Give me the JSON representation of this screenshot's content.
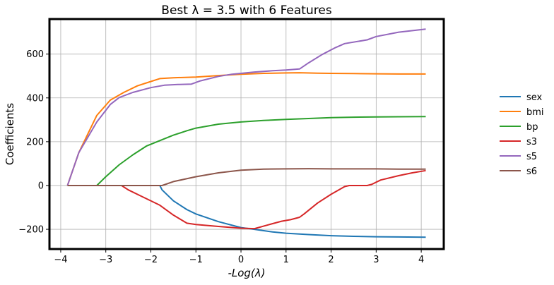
{
  "chart_data": {
    "type": "line",
    "title": "Best λ = 3.5 with 6 Features",
    "xlabel": "-Log(λ)",
    "ylabel": "Coefficients",
    "xlim": [
      -4.25,
      4.5
    ],
    "ylim": [
      -290,
      760
    ],
    "xticks": [
      -4,
      -3,
      -2,
      -1,
      0,
      1,
      2,
      3,
      4
    ],
    "xtick_labels": [
      "−4",
      "−3",
      "−2",
      "−1",
      "0",
      "1",
      "2",
      "3",
      "4"
    ],
    "yticks": [
      -200,
      0,
      200,
      400,
      600
    ],
    "ytick_labels": [
      "−200",
      "0",
      "200",
      "400",
      "600"
    ],
    "grid": true,
    "legend_position": "right-outside",
    "series": [
      {
        "name": "sex",
        "color": "#1f77b4",
        "points": [
          [
            -3.85,
            0
          ],
          [
            -3.5,
            0
          ],
          [
            -3.0,
            0
          ],
          [
            -2.5,
            0
          ],
          [
            -2.0,
            0
          ],
          [
            -1.8,
            0
          ],
          [
            -1.75,
            -20
          ],
          [
            -1.5,
            -70
          ],
          [
            -1.2,
            -110
          ],
          [
            -1.0,
            -130
          ],
          [
            -0.5,
            -165
          ],
          [
            0,
            -192
          ],
          [
            0.3,
            -200
          ],
          [
            0.7,
            -212
          ],
          [
            1.0,
            -218
          ],
          [
            1.5,
            -224
          ],
          [
            2.0,
            -229
          ],
          [
            2.5,
            -232
          ],
          [
            3.0,
            -234
          ],
          [
            3.5,
            -235
          ],
          [
            4.1,
            -236
          ]
        ]
      },
      {
        "name": "bmi",
        "color": "#ff7f0e",
        "points": [
          [
            -3.85,
            0
          ],
          [
            -3.6,
            150
          ],
          [
            -3.2,
            320
          ],
          [
            -2.9,
            390
          ],
          [
            -2.6,
            425
          ],
          [
            -2.3,
            455
          ],
          [
            -2.0,
            475
          ],
          [
            -1.8,
            488
          ],
          [
            -1.5,
            492
          ],
          [
            -1.0,
            495
          ],
          [
            -0.5,
            502
          ],
          [
            0,
            508
          ],
          [
            0.5,
            512
          ],
          [
            1.0,
            514
          ],
          [
            1.3,
            515
          ],
          [
            1.7,
            513
          ],
          [
            2.0,
            512
          ],
          [
            2.5,
            511
          ],
          [
            3.0,
            510
          ],
          [
            3.5,
            509
          ],
          [
            4.1,
            509
          ]
        ]
      },
      {
        "name": "bp",
        "color": "#2ca02c",
        "points": [
          [
            -3.85,
            0
          ],
          [
            -3.2,
            0
          ],
          [
            -3.0,
            40
          ],
          [
            -2.7,
            95
          ],
          [
            -2.4,
            140
          ],
          [
            -2.1,
            180
          ],
          [
            -1.8,
            205
          ],
          [
            -1.5,
            230
          ],
          [
            -1.2,
            250
          ],
          [
            -1.0,
            262
          ],
          [
            -0.5,
            280
          ],
          [
            0,
            290
          ],
          [
            0.5,
            297
          ],
          [
            1.0,
            302
          ],
          [
            1.5,
            306
          ],
          [
            2.0,
            310
          ],
          [
            2.5,
            312
          ],
          [
            3.0,
            313
          ],
          [
            3.5,
            314
          ],
          [
            4.1,
            315
          ]
        ]
      },
      {
        "name": "s3",
        "color": "#d62728",
        "points": [
          [
            -3.85,
            0
          ],
          [
            -2.65,
            0
          ],
          [
            -2.5,
            -20
          ],
          [
            -2.2,
            -50
          ],
          [
            -1.8,
            -90
          ],
          [
            -1.5,
            -135
          ],
          [
            -1.2,
            -172
          ],
          [
            -1.0,
            -178
          ],
          [
            -0.5,
            -187
          ],
          [
            0,
            -195
          ],
          [
            0.3,
            -197
          ],
          [
            0.6,
            -180
          ],
          [
            0.9,
            -163
          ],
          [
            1.1,
            -156
          ],
          [
            1.3,
            -145
          ],
          [
            1.4,
            -130
          ],
          [
            1.7,
            -80
          ],
          [
            2.0,
            -40
          ],
          [
            2.3,
            -5
          ],
          [
            2.4,
            0
          ],
          [
            2.8,
            0
          ],
          [
            2.9,
            5
          ],
          [
            3.1,
            25
          ],
          [
            3.5,
            45
          ],
          [
            3.8,
            58
          ],
          [
            4.1,
            68
          ]
        ]
      },
      {
        "name": "s5",
        "color": "#9467bd",
        "points": [
          [
            -3.85,
            0
          ],
          [
            -3.6,
            150
          ],
          [
            -3.2,
            290
          ],
          [
            -2.9,
            370
          ],
          [
            -2.7,
            402
          ],
          [
            -2.4,
            425
          ],
          [
            -2.0,
            447
          ],
          [
            -1.7,
            458
          ],
          [
            -1.4,
            461
          ],
          [
            -1.1,
            463
          ],
          [
            -0.9,
            478
          ],
          [
            -0.5,
            498
          ],
          [
            -0.2,
            508
          ],
          [
            0.3,
            518
          ],
          [
            0.7,
            524
          ],
          [
            1.0,
            527
          ],
          [
            1.3,
            532
          ],
          [
            1.5,
            560
          ],
          [
            1.8,
            598
          ],
          [
            2.1,
            630
          ],
          [
            2.3,
            648
          ],
          [
            2.8,
            665
          ],
          [
            3.0,
            680
          ],
          [
            3.5,
            700
          ],
          [
            4.1,
            714
          ]
        ]
      },
      {
        "name": "s6",
        "color": "#8c564b",
        "points": [
          [
            -3.85,
            0
          ],
          [
            -2.0,
            0
          ],
          [
            -1.75,
            0
          ],
          [
            -1.5,
            18
          ],
          [
            -1.0,
            40
          ],
          [
            -0.5,
            58
          ],
          [
            0,
            70
          ],
          [
            0.5,
            75
          ],
          [
            1.0,
            76
          ],
          [
            1.5,
            77
          ],
          [
            2.0,
            76
          ],
          [
            2.5,
            76
          ],
          [
            3.0,
            76
          ],
          [
            3.5,
            75
          ],
          [
            4.1,
            75
          ]
        ]
      }
    ]
  }
}
